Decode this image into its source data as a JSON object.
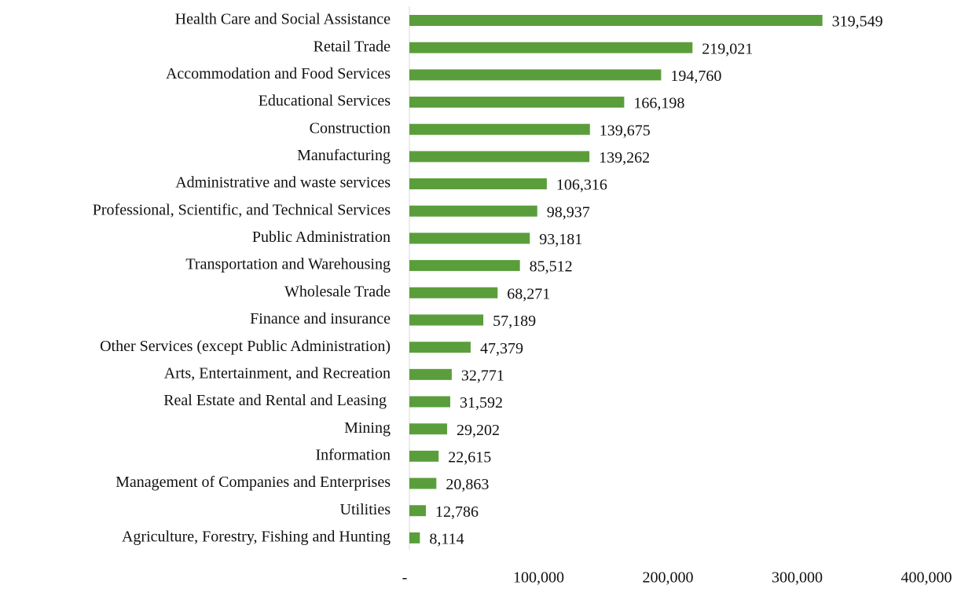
{
  "chart_data": {
    "type": "bar",
    "orientation": "horizontal",
    "categories": [
      "Health Care and Social Assistance",
      "Retail Trade",
      "Accommodation and Food Services",
      "Educational Services",
      "Construction",
      "Manufacturing",
      "Administrative and waste services",
      "Professional, Scientific, and Technical Services",
      "Public Administration",
      "Transportation and Warehousing",
      "Wholesale Trade",
      "Finance and insurance",
      "Other Services (except Public Administration)",
      "Arts, Entertainment, and Recreation",
      "Real Estate and Rental and Leasing ",
      "Mining",
      "Information",
      "Management of Companies and Enterprises",
      "Utilities",
      "Agriculture, Forestry, Fishing and Hunting"
    ],
    "values": [
      319549,
      219021,
      194760,
      166198,
      139675,
      139262,
      106316,
      98937,
      93181,
      85512,
      68271,
      57189,
      47379,
      32771,
      31592,
      29202,
      22615,
      20863,
      12786,
      8114
    ],
    "value_labels": [
      "319,549",
      "219,021",
      "194,760",
      "166,198",
      "139,675",
      "139,262",
      "106,316",
      "98,937",
      "93,181",
      "85,512",
      "68,271",
      "57,189",
      "47,379",
      "32,771",
      "31,592",
      "29,202",
      "22,615",
      "20,863",
      "12,786",
      "8,114"
    ],
    "color": "#5a9e3c",
    "xlim": [
      0,
      400000
    ],
    "xticks": [
      {
        "value": 0,
        "label": "-"
      },
      {
        "value": 100000,
        "label": "100,000"
      },
      {
        "value": 200000,
        "label": "200,000"
      },
      {
        "value": 300000,
        "label": "300,000"
      },
      {
        "value": 400000,
        "label": "400,000"
      }
    ]
  }
}
